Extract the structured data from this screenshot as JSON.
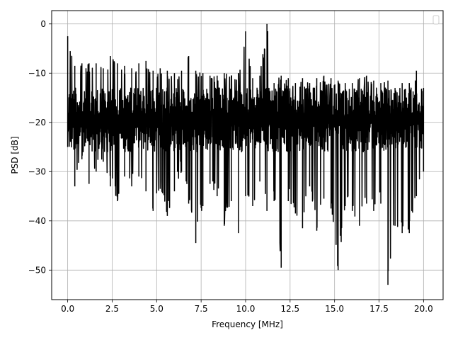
{
  "chart_data": {
    "type": "line",
    "title": "",
    "xlabel": "Frequency [MHz]",
    "ylabel": "PSD [dB]",
    "xlim": [
      -0.9,
      21.1
    ],
    "ylim": [
      -56,
      2.7
    ],
    "x_ticks": [
      0.0,
      2.5,
      5.0,
      7.5,
      10.0,
      12.5,
      15.0,
      17.5,
      20.0
    ],
    "x_tick_labels": [
      "0.0",
      "2.5",
      "5.0",
      "7.5",
      "10.0",
      "12.5",
      "15.0",
      "17.5",
      "20.0"
    ],
    "y_ticks": [
      0,
      -10,
      -20,
      -30,
      -40,
      -50
    ],
    "y_tick_labels": [
      "0",
      "−10",
      "−20",
      "−30",
      "−40",
      "−50"
    ],
    "grid": true,
    "legend": {
      "placement": "upper-right",
      "entries": []
    },
    "series_style": {
      "color": "#000000",
      "linewidth": 1.5
    },
    "series": [
      {
        "x": [
          0.0,
          0.4,
          0.8,
          1.2,
          1.6,
          2.0,
          2.4,
          2.8,
          3.2,
          3.6,
          4.0,
          4.4,
          4.8,
          5.2,
          5.6,
          6.0,
          6.4,
          6.8,
          7.2,
          7.6,
          8.0,
          8.4,
          8.8,
          9.2,
          9.6,
          10.0,
          10.4,
          10.8,
          11.2,
          11.6,
          12.0,
          12.4,
          12.8,
          13.2,
          13.6,
          14.0,
          14.4,
          14.8,
          15.2,
          15.6,
          16.0,
          16.4,
          16.8,
          17.2,
          17.6,
          18.0,
          18.4,
          18.8,
          19.2,
          19.6,
          20.0
        ],
        "y_max": [
          -2.5,
          -8.5,
          -8.0,
          -8.0,
          -8.0,
          -9.0,
          -6.5,
          -8.0,
          -8.5,
          -9.0,
          -8.0,
          -7.5,
          -9.5,
          -9.0,
          -9.5,
          -10.0,
          -9.5,
          -6.5,
          -9.5,
          -10.0,
          -10.5,
          -10.5,
          -10.0,
          -10.5,
          -10.0,
          -1.5,
          -11.0,
          -10.5,
          0.0,
          -12.0,
          -10.5,
          -11.0,
          -12.0,
          -11.0,
          -12.0,
          -11.0,
          -10.5,
          -11.0,
          -11.5,
          -12.0,
          -12.0,
          -11.0,
          -10.5,
          -11.5,
          -12.0,
          -11.5,
          -13.0,
          -12.0,
          -12.0,
          -9.5,
          -13.0
        ],
        "y_min": [
          -25.0,
          -33.0,
          -27.5,
          -32.5,
          -30.0,
          -28.0,
          -33.0,
          -36.0,
          -31.0,
          -33.0,
          -31.0,
          -34.0,
          -38.0,
          -33.5,
          -39.0,
          -34.0,
          -30.0,
          -36.5,
          -44.5,
          -37.0,
          -32.5,
          -35.0,
          -41.0,
          -36.0,
          -42.5,
          -35.0,
          -37.0,
          -32.0,
          -38.0,
          -36.0,
          -49.5,
          -36.0,
          -38.5,
          -41.5,
          -33.0,
          -42.0,
          -35.5,
          -37.5,
          -50.0,
          -37.0,
          -38.0,
          -41.0,
          -36.5,
          -38.0,
          -36.5,
          -53.0,
          -41.0,
          -42.5,
          -42.5,
          -35.0,
          -30.0
        ],
        "y_typical_band": [
          -26.0,
          -13.0
        ]
      }
    ]
  }
}
